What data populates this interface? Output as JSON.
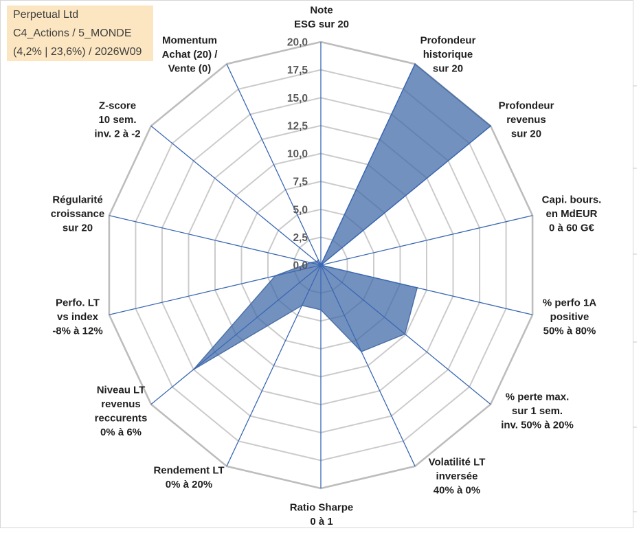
{
  "info_box": {
    "lines": [
      "Perpetual Ltd",
      "C4_Actions / 5_MONDE",
      "(4,2% | 23,6%) / 2026W09"
    ]
  },
  "colors": {
    "axis": "#3a68b4",
    "grid": "#cbcbcb",
    "grid_outer": "#bdbdbd",
    "series_fill": "#3d67a6",
    "series_stroke": "#4b71a8",
    "label_text": "#1f1f1f",
    "tick_text": "#595959",
    "info_box_bg": "#fce6c1",
    "info_box_text": "#3f3f3f"
  },
  "chart_data": {
    "type": "radar",
    "categories": [
      [
        "Note",
        "ESG sur 20"
      ],
      [
        "Profondeur",
        "historique",
        "sur 20"
      ],
      [
        "Profondeur",
        "revenus",
        "sur 20"
      ],
      [
        "Capi. bours.",
        "en MdEUR",
        "0 à 60 G€"
      ],
      [
        "% perfo 1A",
        "positive",
        "50% à 80%"
      ],
      [
        "% perte max.",
        "sur 1 sem.",
        "inv. 50% à 20%"
      ],
      [
        "Volatilité LT",
        "inversée",
        "40% à 0%"
      ],
      [
        "Ratio Sharpe",
        "0 à 1"
      ],
      [
        "Rendement LT",
        "0% à 20%"
      ],
      [
        "Niveau LT",
        "revenus",
        "reccurents",
        "0% à 6%"
      ],
      [
        "Perfo. LT",
        "vs index",
        "-8% à 12%"
      ],
      [
        "Régularité",
        "croissance",
        "sur 20"
      ],
      [
        "Z-score",
        "10 sem.",
        "inv. 2 à -2"
      ],
      [
        "Momentum",
        "Achat (20) /",
        "Vente (0)"
      ]
    ],
    "series": [
      {
        "values": [
          0,
          20,
          20,
          0,
          9.1,
          9.9,
          8.6,
          4.0,
          4.0,
          15.0,
          4.3,
          1.0,
          0.5,
          0.5
        ]
      }
    ],
    "rlim": [
      0,
      20
    ],
    "r_step": 2.5,
    "r_tick_labels": [
      "0,0",
      "2,5",
      "5,0",
      "7,5",
      "10,0",
      "12,5",
      "15,0",
      "17,5",
      "20,0"
    ],
    "grid": true,
    "legend": "none"
  }
}
